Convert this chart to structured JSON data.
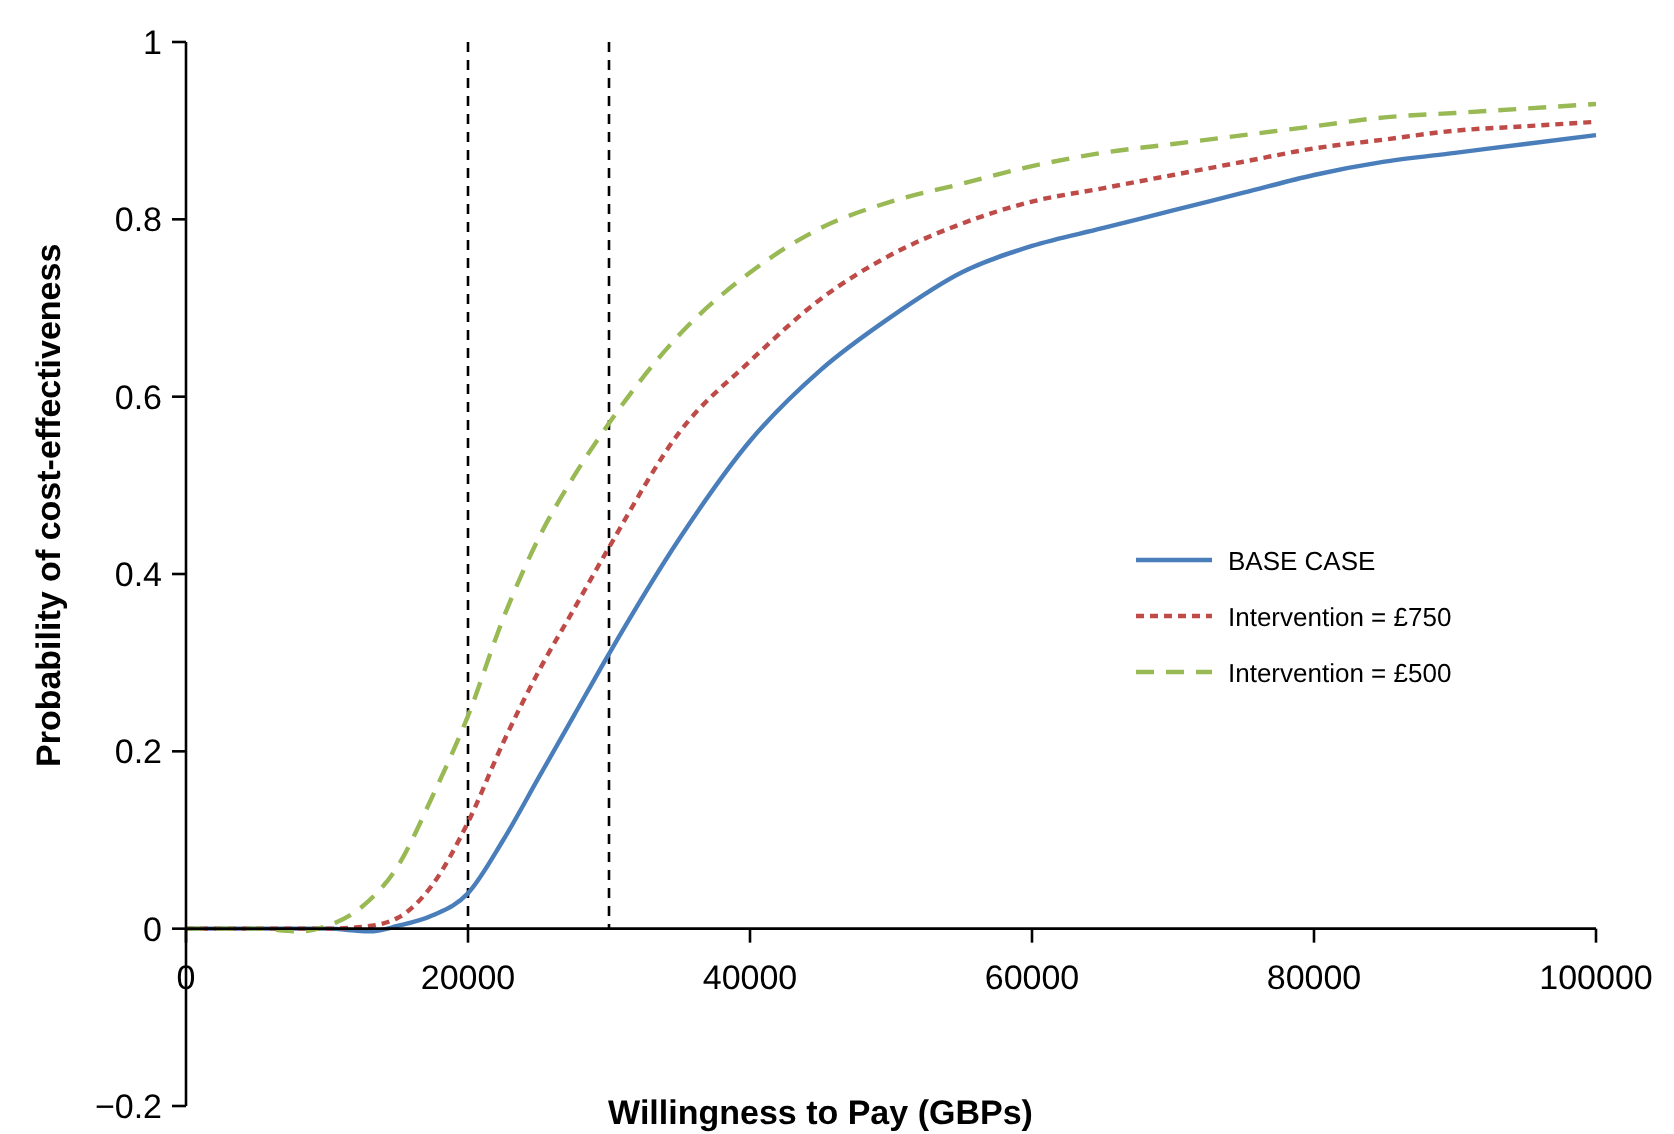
{
  "chart_data": {
    "type": "line",
    "xlabel": "Willingness to Pay (GBPs)",
    "ylabel": "Probability of cost-effectiveness",
    "xlim": [
      0,
      100000
    ],
    "xticks": [
      0,
      20000,
      40000,
      60000,
      80000,
      100000
    ],
    "ylim": [
      -0.2,
      1
    ],
    "yticks": [
      {
        "value": -0.2,
        "label": "−0.2"
      },
      0,
      0.2,
      0.4,
      0.6,
      0.8,
      1
    ],
    "grid": false,
    "legend": "right",
    "marker": "none",
    "ref_lines": [
      {
        "axis": "x",
        "value": 20000,
        "color": "#000000",
        "line_style": "dashed"
      },
      {
        "axis": "x",
        "value": 30000,
        "color": "#000000",
        "line_style": "dashed"
      }
    ],
    "series": [
      {
        "name": "BASE CASE",
        "color": "#4a7ebb",
        "line_style": "solid",
        "x": [
          0,
          5000,
          10000,
          13000,
          15000,
          17500,
          20000,
          22500,
          25000,
          27500,
          30000,
          35000,
          40000,
          45000,
          50000,
          55000,
          60000,
          65000,
          70000,
          75000,
          80000,
          85000,
          90000,
          95000,
          100000
        ],
        "values": [
          0,
          0,
          0,
          -0.003,
          0.003,
          0.015,
          0.04,
          0.1,
          0.17,
          0.24,
          0.31,
          0.44,
          0.55,
          0.63,
          0.69,
          0.74,
          0.77,
          0.79,
          0.81,
          0.83,
          0.85,
          0.865,
          0.875,
          0.885,
          0.895
        ]
      },
      {
        "name": "Intervention = £750",
        "color": "#be4b48",
        "line_style": "dashed",
        "x": [
          0,
          5000,
          10000,
          12500,
          15000,
          17500,
          20000,
          22500,
          25000,
          27500,
          30000,
          35000,
          40000,
          45000,
          50000,
          55000,
          60000,
          65000,
          70000,
          75000,
          80000,
          85000,
          90000,
          95000,
          100000
        ],
        "values": [
          0,
          0,
          0,
          0.002,
          0.012,
          0.05,
          0.12,
          0.21,
          0.29,
          0.36,
          0.43,
          0.56,
          0.64,
          0.71,
          0.76,
          0.795,
          0.82,
          0.835,
          0.85,
          0.865,
          0.88,
          0.89,
          0.9,
          0.905,
          0.91
        ]
      },
      {
        "name": "Intervention = £500",
        "color": "#98b954",
        "line_style": "dashed",
        "x": [
          0,
          5000,
          8000,
          10000,
          12500,
          15000,
          17500,
          20000,
          22500,
          25000,
          27500,
          30000,
          35000,
          40000,
          45000,
          50000,
          55000,
          60000,
          65000,
          70000,
          75000,
          80000,
          85000,
          90000,
          95000,
          100000
        ],
        "values": [
          0,
          0,
          -0.003,
          0.003,
          0.025,
          0.07,
          0.15,
          0.24,
          0.35,
          0.44,
          0.51,
          0.57,
          0.67,
          0.74,
          0.79,
          0.82,
          0.84,
          0.86,
          0.875,
          0.885,
          0.895,
          0.905,
          0.915,
          0.92,
          0.925,
          0.93
        ]
      }
    ]
  }
}
